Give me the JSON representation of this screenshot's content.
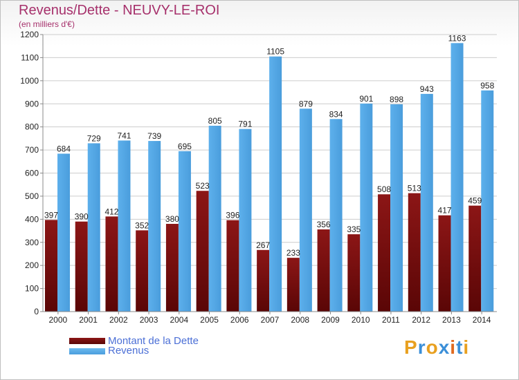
{
  "title": "Revenus/Dette - NEUVY-LE-ROI",
  "subtitle": "(en milliers d'€)",
  "colors": {
    "dette": "#7b1010",
    "revenus": "#55a8e6",
    "title": "#a6306b"
  },
  "legend": [
    {
      "label": "Montant de la Dette",
      "color": "#7b1010"
    },
    {
      "label": "Revenus",
      "color": "#55a8e6"
    }
  ],
  "logo": {
    "text": "Proxiti",
    "letters": [
      "P",
      "r",
      "o",
      "x",
      "i",
      "t",
      "i"
    ],
    "colors": [
      "#e8a020",
      "#3b8fd8",
      "#e8a020",
      "#3b8fd8",
      "#e06a20",
      "#3b8fd8",
      "#e8a020"
    ]
  },
  "chart_data": {
    "type": "bar",
    "categories": [
      "2000",
      "2001",
      "2002",
      "2003",
      "2004",
      "2005",
      "2006",
      "2007",
      "2008",
      "2009",
      "2010",
      "2011",
      "2012",
      "2013",
      "2014"
    ],
    "series": [
      {
        "name": "Montant de la Dette",
        "values": [
          397,
          390,
          412,
          352,
          380,
          523,
          396,
          267,
          233,
          356,
          335,
          508,
          513,
          417,
          459
        ]
      },
      {
        "name": "Revenus",
        "values": [
          684,
          729,
          741,
          739,
          695,
          805,
          791,
          1105,
          879,
          834,
          901,
          898,
          943,
          1163,
          958
        ]
      }
    ],
    "yticks": [
      0,
      100,
      200,
      300,
      400,
      500,
      600,
      700,
      800,
      900,
      1000,
      1100,
      1200
    ],
    "ylim": [
      0,
      1200
    ],
    "grid": true,
    "legend_position": "bottom-left"
  }
}
